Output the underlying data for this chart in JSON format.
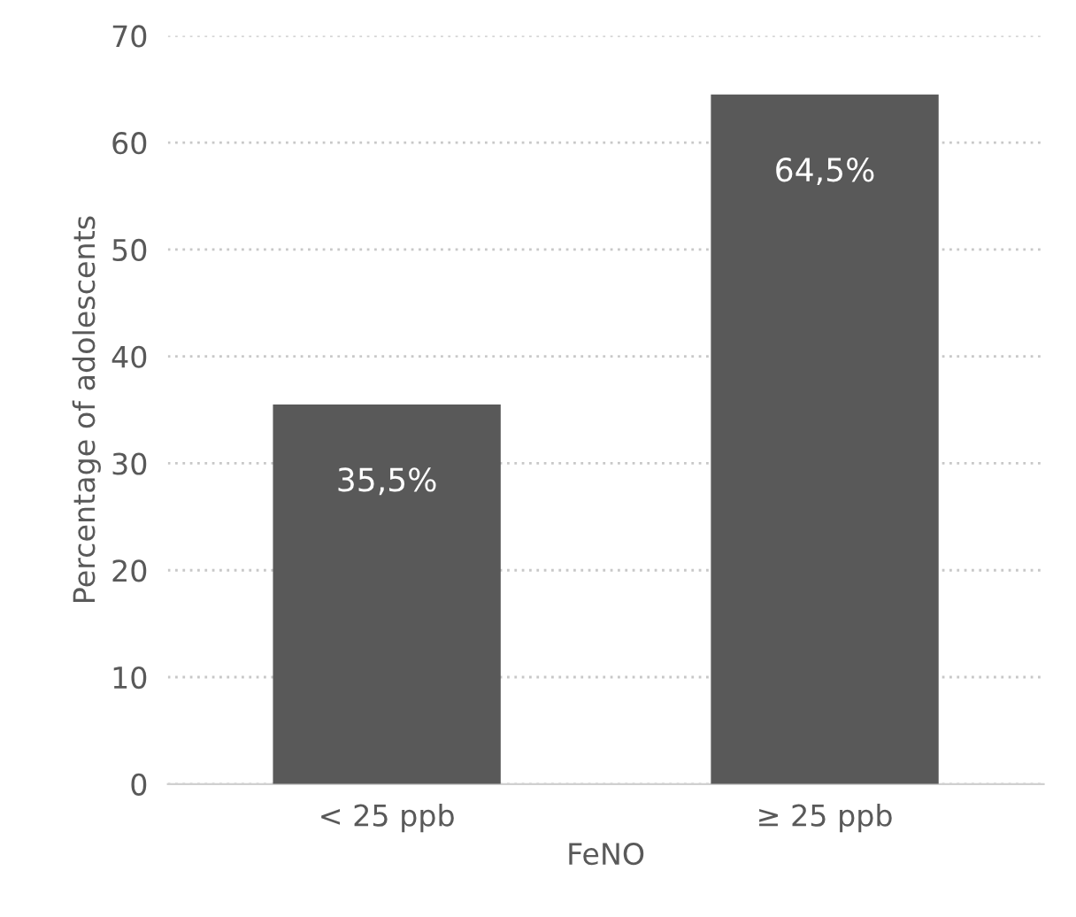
{
  "chart_data": {
    "type": "bar",
    "xlabel": "FeNO",
    "ylabel": "Percentage of adolescents",
    "categories": [
      "< 25 ppb",
      "≥ 25 ppb"
    ],
    "values": [
      35.5,
      64.5
    ],
    "value_labels": [
      "35,5%",
      "64,5%"
    ],
    "color": "#595959",
    "ylim": [
      0,
      70
    ],
    "yticks": [
      0,
      10,
      20,
      30,
      40,
      50,
      60,
      70
    ],
    "grid": "y"
  }
}
